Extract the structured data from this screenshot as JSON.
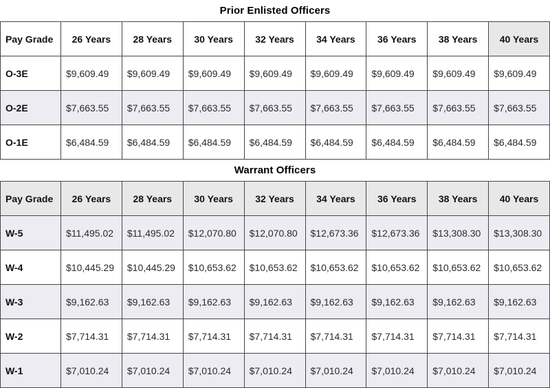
{
  "tables": [
    {
      "title": "Prior Enlisted Officers",
      "columns": [
        "Pay Grade",
        "26 Years",
        "28 Years",
        "30 Years",
        "32 Years",
        "34 Years",
        "36 Years",
        "38 Years",
        "40 Years"
      ],
      "highlighted_column": "40 Years",
      "header_shaded": false,
      "rows": [
        {
          "grade": "O-3E",
          "values": [
            "$9,609.49",
            "$9,609.49",
            "$9,609.49",
            "$9,609.49",
            "$9,609.49",
            "$9,609.49",
            "$9,609.49",
            "$9,609.49"
          ]
        },
        {
          "grade": "O-2E",
          "values": [
            "$7,663.55",
            "$7,663.55",
            "$7,663.55",
            "$7,663.55",
            "$7,663.55",
            "$7,663.55",
            "$7,663.55",
            "$7,663.55"
          ]
        },
        {
          "grade": "O-1E",
          "values": [
            "$6,484.59",
            "$6,484.59",
            "$6,484.59",
            "$6,484.59",
            "$6,484.59",
            "$6,484.59",
            "$6,484.59",
            "$6,484.59"
          ]
        }
      ]
    },
    {
      "title": "Warrant Officers",
      "columns": [
        "Pay Grade",
        "26 Years",
        "28 Years",
        "30 Years",
        "32 Years",
        "34 Years",
        "36 Years",
        "38 Years",
        "40 Years"
      ],
      "highlighted_column": null,
      "header_shaded": true,
      "rows": [
        {
          "grade": "W-5",
          "values": [
            "$11,495.02",
            "$11,495.02",
            "$12,070.80",
            "$12,070.80",
            "$12,673.36",
            "$12,673.36",
            "$13,308.30",
            "$13,308.30"
          ]
        },
        {
          "grade": "W-4",
          "values": [
            "$10,445.29",
            "$10,445.29",
            "$10,653.62",
            "$10,653.62",
            "$10,653.62",
            "$10,653.62",
            "$10,653.62",
            "$10,653.62"
          ]
        },
        {
          "grade": "W-3",
          "values": [
            "$9,162.63",
            "$9,162.63",
            "$9,162.63",
            "$9,162.63",
            "$9,162.63",
            "$9,162.63",
            "$9,162.63",
            "$9,162.63"
          ]
        },
        {
          "grade": "W-2",
          "values": [
            "$7,714.31",
            "$7,714.31",
            "$7,714.31",
            "$7,714.31",
            "$7,714.31",
            "$7,714.31",
            "$7,714.31",
            "$7,714.31"
          ]
        },
        {
          "grade": "W-1",
          "values": [
            "$7,010.24",
            "$7,010.24",
            "$7,010.24",
            "$7,010.24",
            "$7,010.24",
            "$7,010.24",
            "$7,010.24",
            "$7,010.24"
          ]
        }
      ]
    }
  ],
  "colors": {
    "border": "#464646",
    "stripe_row_bg": "#ececf2",
    "header_shade_bg": "#e8e8e8",
    "title_text": "#000000",
    "cell_text": "#2b2b2b"
  }
}
